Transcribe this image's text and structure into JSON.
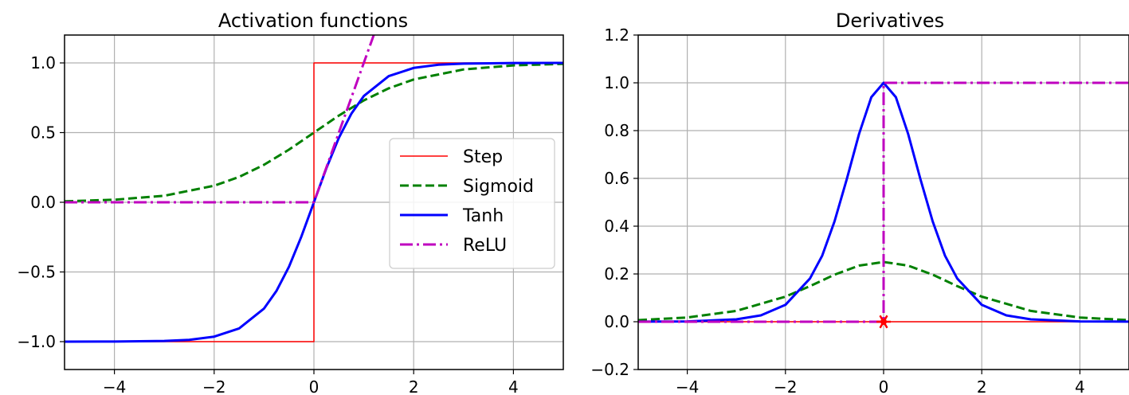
{
  "chart_data": [
    {
      "type": "line",
      "title": "Activation functions",
      "xlabel": "",
      "ylabel": "",
      "xlim": [
        -5,
        5
      ],
      "ylim": [
        -1.2,
        1.2
      ],
      "xticks": [
        -4,
        -2,
        0,
        2,
        4
      ],
      "yticks": [
        -1.0,
        -0.5,
        0.0,
        0.5,
        1.0
      ],
      "xtick_labels": [
        "−4",
        "−2",
        "0",
        "2",
        "4"
      ],
      "ytick_labels": [
        "−1.0",
        "−0.5",
        "0.0",
        "0.5",
        "1.0"
      ],
      "grid": true,
      "legend_position": "center-right",
      "series": [
        {
          "name": "Step",
          "color": "#ff0000",
          "style": "solid-thin",
          "x": [
            -5,
            0,
            0,
            5
          ],
          "y": [
            -1,
            -1,
            1,
            1
          ]
        },
        {
          "name": "Sigmoid",
          "color": "#008000",
          "style": "dashed",
          "x": [
            -5,
            -4,
            -3,
            -2,
            -1.5,
            -1,
            -0.5,
            0,
            0.5,
            1,
            1.5,
            2,
            3,
            4,
            5
          ],
          "y": [
            0.0067,
            0.018,
            0.047,
            0.119,
            0.182,
            0.269,
            0.378,
            0.5,
            0.622,
            0.731,
            0.818,
            0.881,
            0.953,
            0.982,
            0.9933
          ]
        },
        {
          "name": "Tanh",
          "color": "#0000ff",
          "style": "solid",
          "x": [
            -5,
            -4,
            -3,
            -2.5,
            -2,
            -1.5,
            -1,
            -0.75,
            -0.5,
            -0.25,
            0,
            0.25,
            0.5,
            0.75,
            1,
            1.5,
            2,
            2.5,
            3,
            4,
            5
          ],
          "y": [
            -0.9999,
            -0.9993,
            -0.995,
            -0.987,
            -0.964,
            -0.905,
            -0.762,
            -0.635,
            -0.462,
            -0.245,
            0,
            0.245,
            0.462,
            0.635,
            0.762,
            0.905,
            0.964,
            0.987,
            0.995,
            0.9993,
            0.9999
          ]
        },
        {
          "name": "ReLU",
          "color": "#bf00bf",
          "style": "dashdot",
          "x": [
            -5,
            0,
            1.2
          ],
          "y": [
            0,
            0,
            1.2
          ]
        }
      ]
    },
    {
      "type": "line",
      "title": "Derivatives",
      "xlabel": "",
      "ylabel": "",
      "xlim": [
        -5,
        5
      ],
      "ylim": [
        -0.2,
        1.2
      ],
      "xticks": [
        -4,
        -2,
        0,
        2,
        4
      ],
      "yticks": [
        -0.2,
        0.0,
        0.2,
        0.4,
        0.6,
        0.8,
        1.0,
        1.2
      ],
      "xtick_labels": [
        "−4",
        "−2",
        "0",
        "2",
        "4"
      ],
      "ytick_labels": [
        "−0.2",
        "0.0",
        "0.2",
        "0.4",
        "0.6",
        "0.8",
        "1.0",
        "1.2"
      ],
      "grid": true,
      "series": [
        {
          "name": "Step",
          "color": "#ff0000",
          "style": "solid-thin",
          "x": [
            -5,
            5
          ],
          "y": [
            0,
            0
          ]
        },
        {
          "name": "Sigmoid",
          "color": "#008000",
          "style": "dashed",
          "x": [
            -5,
            -4,
            -3,
            -2,
            -1.5,
            -1,
            -0.5,
            0,
            0.5,
            1,
            1.5,
            2,
            3,
            4,
            5
          ],
          "y": [
            0.0066,
            0.0177,
            0.0452,
            0.105,
            0.149,
            0.197,
            0.235,
            0.25,
            0.235,
            0.197,
            0.149,
            0.105,
            0.0452,
            0.0177,
            0.0066
          ]
        },
        {
          "name": "Tanh",
          "color": "#0000ff",
          "style": "solid",
          "x": [
            -5,
            -4,
            -3,
            -2.5,
            -2,
            -1.5,
            -1.25,
            -1,
            -0.75,
            -0.5,
            -0.25,
            0,
            0.25,
            0.5,
            0.75,
            1,
            1.25,
            1.5,
            2,
            2.5,
            3,
            4,
            5
          ],
          "y": [
            0.0002,
            0.0013,
            0.0099,
            0.0266,
            0.0707,
            0.181,
            0.277,
            0.42,
            0.597,
            0.786,
            0.94,
            1.0,
            0.94,
            0.786,
            0.597,
            0.42,
            0.277,
            0.181,
            0.0707,
            0.0266,
            0.0099,
            0.0013,
            0.0002
          ]
        },
        {
          "name": "ReLU",
          "color": "#bf00bf",
          "style": "dashdot",
          "x": [
            -5,
            0,
            0,
            5
          ],
          "y": [
            0,
            0,
            1,
            1
          ]
        }
      ],
      "markers": [
        {
          "x": 0,
          "y": 0,
          "color": "#ff0000",
          "symbol": "star"
        }
      ]
    }
  ]
}
